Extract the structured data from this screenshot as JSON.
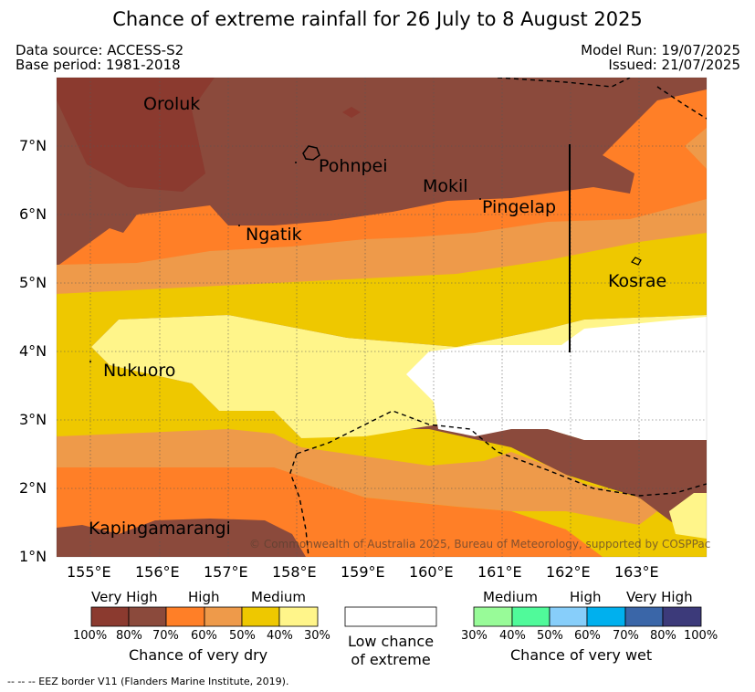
{
  "title": "Chance of extreme rainfall for 26 July to 8 August 2025",
  "meta": {
    "data_source": "Data source: ACCESS-S2",
    "base_period": "Base period: 1981-2018",
    "model_run": "Model Run: 19/07/2025",
    "issued": "Issued: 21/07/2025"
  },
  "map": {
    "lon_range": [
      154.5,
      164.0
    ],
    "lat_range": [
      1.0,
      8.0
    ],
    "x_ticks": [
      "155°E",
      "156°E",
      "157°E",
      "158°E",
      "159°E",
      "160°E",
      "161°E",
      "162°E",
      "163°E"
    ],
    "y_ticks": [
      "7°N",
      "6°N",
      "5°N",
      "4°N",
      "3°N",
      "2°N",
      "1°N"
    ],
    "places": [
      "Oroluk",
      "Pohnpei",
      "Mokil",
      "Pingelap",
      "Ngatik",
      "Kosrae",
      "Nukuoro",
      "Kapingamarangi"
    ],
    "copyright": "© Commonwealth of Australia 2025, Bureau of Meteorology, supported by COSPPac"
  },
  "legend": {
    "dry": {
      "groups": [
        "Very High",
        "High",
        "Medium"
      ],
      "ticks": [
        "100%",
        "80%",
        "70%",
        "60%",
        "50%",
        "40%",
        "30%"
      ],
      "colors": [
        "#8b3a2f",
        "#8b4a3c",
        "#ff7f27",
        "#ee9a4a",
        "#eec800",
        "#fff58a"
      ],
      "title": "Chance of very dry"
    },
    "low": {
      "line1": "Low chance",
      "line2": "of extreme"
    },
    "wet": {
      "groups": [
        "Medium",
        "High",
        "Very High"
      ],
      "ticks": [
        "30%",
        "40%",
        "50%",
        "60%",
        "70%",
        "80%",
        "100%"
      ],
      "colors": [
        "#98fb98",
        "#50fa9a",
        "#87cefa",
        "#00b0ee",
        "#3a66a8",
        "#3c3a7a"
      ],
      "title": "Chance of very wet"
    }
  },
  "footnote": "-- -- -- EEZ border V11 (Flanders Marine Institute, 2019)."
}
